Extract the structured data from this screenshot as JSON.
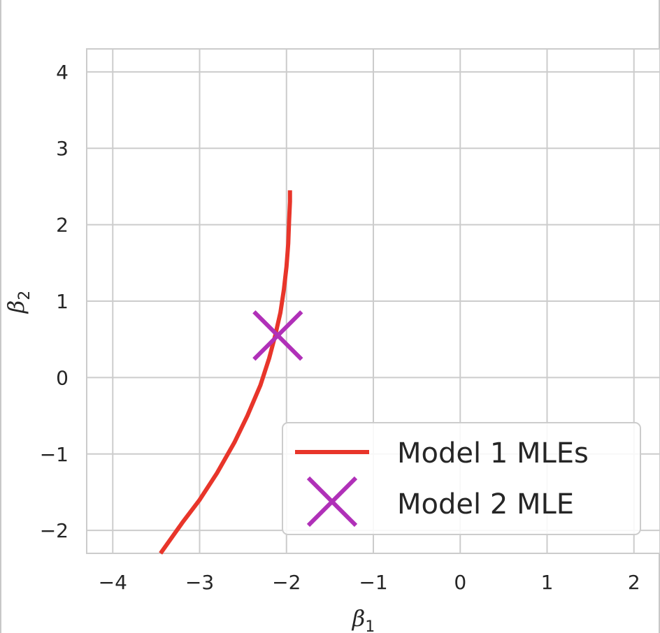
{
  "chart_data": {
    "type": "line",
    "xlabel": "β",
    "xlabel_sub": "1",
    "ylabel": "β",
    "ylabel_sub": "2",
    "xlim": [
      -4.3,
      2.3
    ],
    "ylim": [
      -2.3,
      4.3
    ],
    "xticks": [
      -4,
      -3,
      -2,
      -1,
      0,
      1,
      2
    ],
    "xtick_labels": [
      "−4",
      "−3",
      "−2",
      "−1",
      "0",
      "1",
      "2"
    ],
    "yticks": [
      -2,
      -1,
      0,
      1,
      2,
      3,
      4
    ],
    "ytick_labels": [
      "−2",
      "−1",
      "0",
      "1",
      "2",
      "3",
      "4"
    ],
    "grid": true,
    "legend_position": "lower-right",
    "series": [
      {
        "name": "Model 1 MLEs",
        "kind": "line",
        "color": "#e8352a",
        "x": [
          -3.45,
          -3.2,
          -3.0,
          -2.8,
          -2.6,
          -2.45,
          -2.3,
          -2.2,
          -2.13,
          -2.07,
          -2.03,
          -2.0,
          -1.98,
          -1.97,
          -1.96,
          -1.96
        ],
        "y": [
          -2.3,
          -1.9,
          -1.6,
          -1.25,
          -0.85,
          -0.5,
          -0.1,
          0.25,
          0.55,
          0.85,
          1.15,
          1.45,
          1.75,
          2.05,
          2.3,
          2.45
        ]
      },
      {
        "name": "Model 2 MLE",
        "kind": "marker",
        "marker": "x",
        "color": "#b030b8",
        "x": [
          -2.1
        ],
        "y": [
          0.55
        ]
      }
    ]
  }
}
